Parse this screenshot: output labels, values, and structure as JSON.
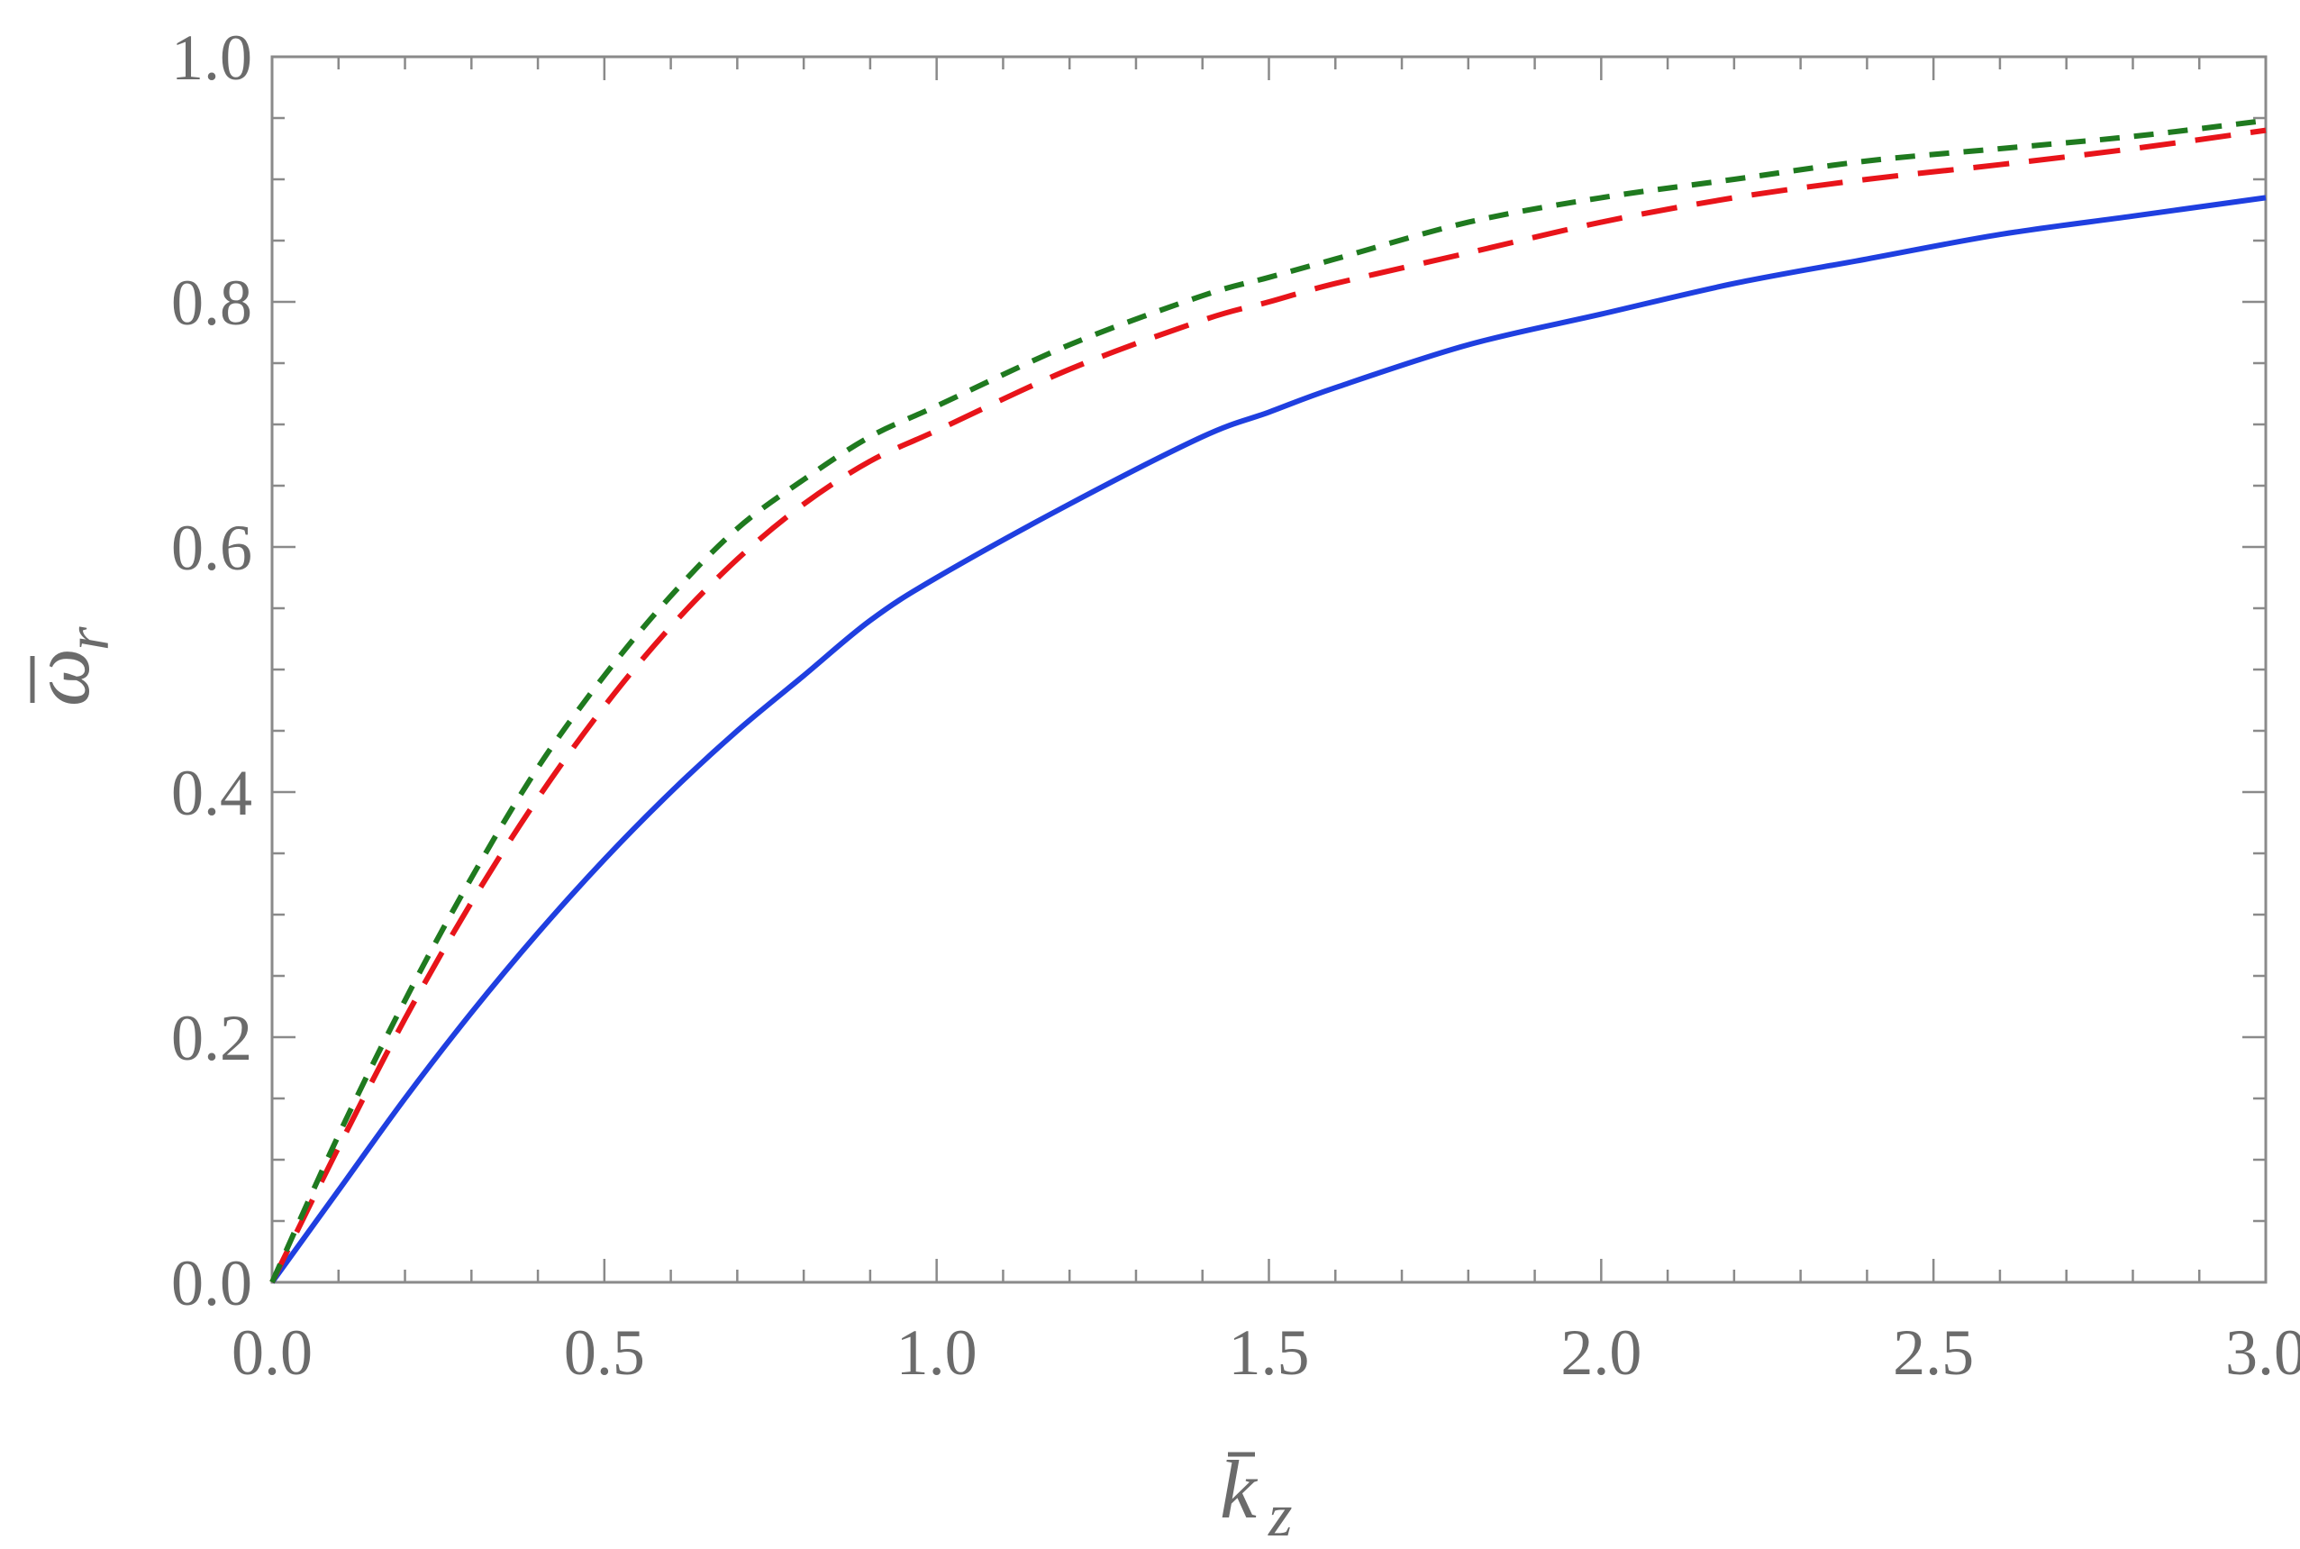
{
  "chart_data": {
    "type": "line",
    "xlabel_base": "k",
    "xlabel_sub": "z",
    "ylabel_base": "ω",
    "ylabel_sub": "r",
    "xlim": [
      0.0,
      3.0
    ],
    "ylim": [
      0.0,
      1.0
    ],
    "xticks": [
      "0.0",
      "0.5",
      "1.0",
      "1.5",
      "2.0",
      "2.5",
      "3.0"
    ],
    "yticks": [
      "0.0",
      "0.2",
      "0.4",
      "0.6",
      "0.8",
      "1.0"
    ],
    "grid": false,
    "legend": "none",
    "series": [
      {
        "color": "#1f3fe0",
        "style": "solid",
        "x": [
          0.0,
          0.1,
          0.2,
          0.3,
          0.4,
          0.5,
          0.6,
          0.7,
          0.8,
          0.9,
          1.0,
          1.2,
          1.4,
          1.5,
          1.6,
          1.8,
          2.0,
          2.2,
          2.4,
          2.6,
          2.8,
          3.0
        ],
        "y": [
          0.0,
          0.075,
          0.15,
          0.22,
          0.285,
          0.345,
          0.4,
          0.45,
          0.495,
          0.54,
          0.575,
          0.635,
          0.69,
          0.71,
          0.73,
          0.765,
          0.79,
          0.815,
          0.835,
          0.855,
          0.87,
          0.885
        ]
      },
      {
        "color": "#e8141a",
        "style": "long-dash",
        "x": [
          0.0,
          0.1,
          0.2,
          0.3,
          0.4,
          0.5,
          0.6,
          0.7,
          0.8,
          0.9,
          1.0,
          1.2,
          1.4,
          1.5,
          1.6,
          1.8,
          2.0,
          2.2,
          2.4,
          2.6,
          2.8,
          3.0
        ],
        "y": [
          0.0,
          0.11,
          0.215,
          0.31,
          0.395,
          0.47,
          0.535,
          0.59,
          0.635,
          0.67,
          0.695,
          0.745,
          0.785,
          0.8,
          0.815,
          0.84,
          0.865,
          0.885,
          0.9,
          0.912,
          0.925,
          0.94
        ]
      },
      {
        "color": "#1f7a1f",
        "style": "short-dash",
        "x": [
          0.0,
          0.1,
          0.2,
          0.3,
          0.4,
          0.5,
          0.6,
          0.7,
          0.8,
          0.9,
          1.0,
          1.2,
          1.4,
          1.5,
          1.6,
          1.8,
          2.0,
          2.2,
          2.4,
          2.6,
          2.8,
          3.0
        ],
        "y": [
          0.0,
          0.12,
          0.23,
          0.33,
          0.42,
          0.495,
          0.56,
          0.615,
          0.655,
          0.69,
          0.715,
          0.765,
          0.805,
          0.82,
          0.835,
          0.865,
          0.885,
          0.9,
          0.915,
          0.925,
          0.935,
          0.948
        ]
      }
    ]
  }
}
